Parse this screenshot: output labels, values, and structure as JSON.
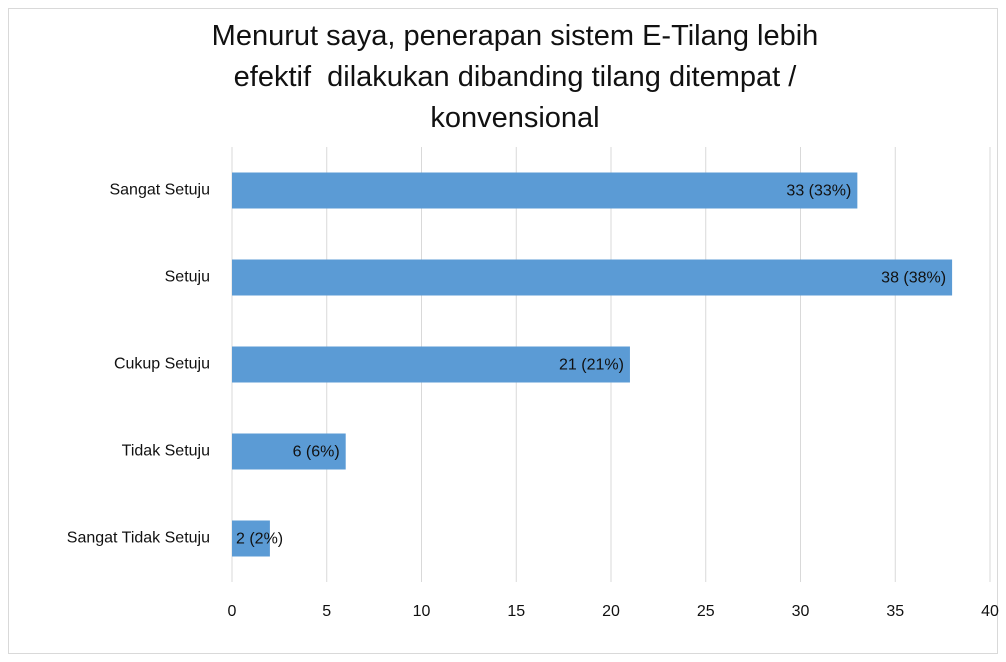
{
  "chart_data": {
    "type": "bar",
    "orientation": "horizontal",
    "title": "Menurut saya, penerapan sistem E-Tilang lebih\nefektif  dilakukan dibanding tilang ditempat /\nkonvensional",
    "categories": [
      "Sangat Setuju",
      "Setuju",
      "Cukup Setuju",
      "Tidak Setuju",
      "Sangat Tidak Setuju"
    ],
    "values": [
      33,
      38,
      21,
      6,
      2
    ],
    "value_labels": [
      "33 (33%)",
      "38 (38%)",
      "21 (21%)",
      "6 (6%)",
      "2 (2%)"
    ],
    "color": "#5b9bd5",
    "xlim": [
      0,
      40
    ],
    "xticks": [
      0,
      5,
      10,
      15,
      20,
      25,
      30,
      35,
      40
    ],
    "grid": true
  }
}
